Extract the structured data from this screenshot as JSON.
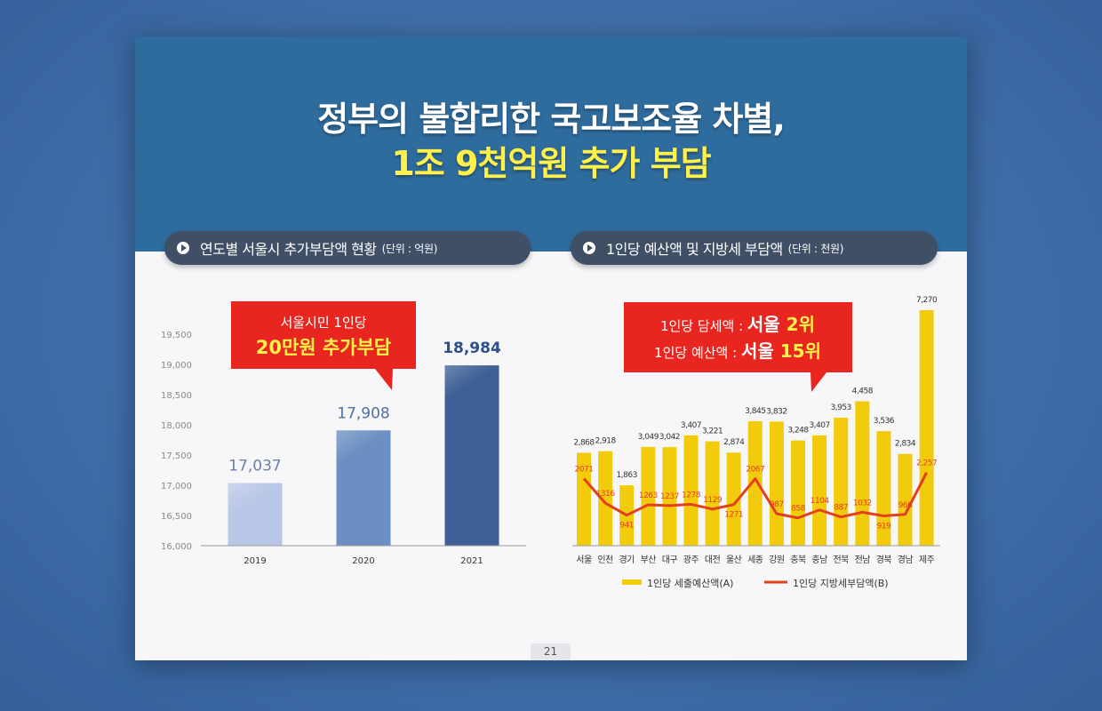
{
  "header": {
    "title_line1": "정부의 불합리한 국고보조율 차별,",
    "title_line2": "1조 9천억원 추가 부담"
  },
  "left_panel": {
    "title": "연도별 서울시 추가부담액 현황",
    "unit": "(단위 : 억원)",
    "callout_line1": "서울시민 1인당",
    "callout_line2": "20만원 추가부담"
  },
  "right_panel": {
    "title": "1인당 예산액 및 지방세 부담액",
    "unit": "(단위 : 천원)",
    "callout_line1_prefix": "1인당 담세액 : ",
    "callout_line1_city": "서울 ",
    "callout_line1_rank": "2위",
    "callout_line2_prefix": "1인당 예산액 : ",
    "callout_line2_city": "서울 ",
    "callout_line2_rank": "15위",
    "legend_a": "1인당 세출예산액(A)",
    "legend_b": "1인당 지방세부담액(B)"
  },
  "page_number": "21",
  "chart_data": [
    {
      "type": "bar",
      "title": "연도별 서울시 추가부담액 현황",
      "unit": "(단위 : 억원)",
      "categories": [
        "2019",
        "2020",
        "2021"
      ],
      "values": [
        17037,
        17908,
        18984
      ],
      "value_labels": [
        "17,037",
        "17,908",
        "18,984"
      ],
      "ylim": [
        16000,
        19500
      ],
      "yticks": [
        16000,
        16500,
        17000,
        17500,
        18000,
        18500,
        19000,
        19500
      ],
      "ytick_labels": [
        "16,000",
        "16,500",
        "17,000",
        "17,500",
        "18,000",
        "18,500",
        "19,000",
        "19,500"
      ],
      "colors": [
        "#b9c7e6",
        "#6b8fc2",
        "#3d5f95"
      ],
      "label_colors": [
        "#6d7fa6",
        "#4f6fa3",
        "#2d4f8a"
      ]
    },
    {
      "type": "bar",
      "title": "1인당 예산액 및 지방세 부담액",
      "unit": "(단위 : 천원)",
      "categories": [
        "서울",
        "인천",
        "경기",
        "부산",
        "대구",
        "광주",
        "대전",
        "울산",
        "세종",
        "강원",
        "충북",
        "충남",
        "전북",
        "전남",
        "경북",
        "경남",
        "제주"
      ],
      "series": [
        {
          "name": "1인당 세출예산액(A)",
          "type": "bar",
          "color": "#f2cc0c",
          "values": [
            2868,
            2918,
            1863,
            3049,
            3042,
            3407,
            3221,
            2874,
            3845,
            3832,
            3248,
            3407,
            3953,
            4458,
            3536,
            2834,
            7270
          ],
          "value_labels": [
            "2,868",
            "2,918",
            "1,863",
            "3,049",
            "3,042",
            "3,407",
            "3,221",
            "2,874",
            "3,845",
            "3,832",
            "3,248",
            "3,407",
            "3,953",
            "4,458",
            "3,536",
            "2,834",
            "7,270"
          ]
        },
        {
          "name": "1인당 지방세부담액(B)",
          "type": "line",
          "color": "#e2401c",
          "values": [
            2071,
            1316,
            941,
            1263,
            1237,
            1278,
            1129,
            1271,
            2067,
            987,
            858,
            1104,
            887,
            1032,
            919,
            966,
            2257
          ],
          "value_labels": [
            "2071",
            "1316",
            "941",
            "1263",
            "1237",
            "1278",
            "1129",
            "1271",
            "2067",
            "987",
            "858",
            "1104",
            "887",
            "1032",
            "919",
            "966",
            "2,257"
          ]
        }
      ]
    }
  ]
}
